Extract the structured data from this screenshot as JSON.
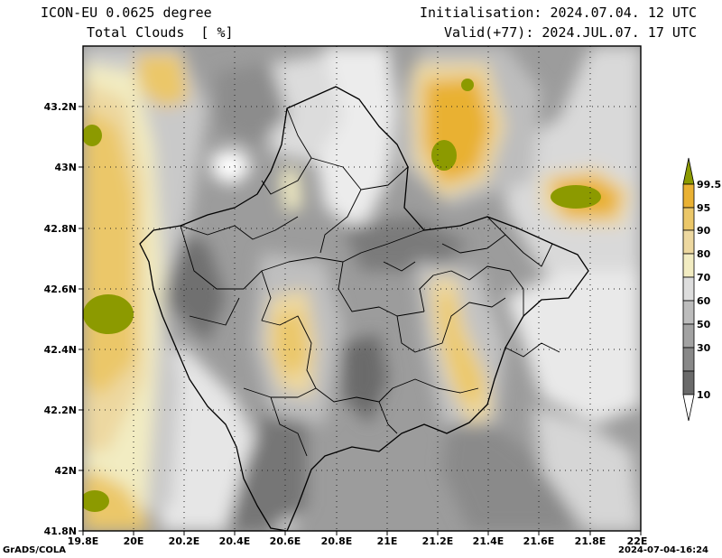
{
  "header": {
    "model": "ICON-EU 0.0625 degree",
    "field": "Total Clouds  [ %]",
    "initialisation": "Initialisation: 2024.07.04. 12 UTC",
    "valid": "Valid(+77): 2024.JUL.07. 17 UTC"
  },
  "axes": {
    "lon_labels": [
      "19.8E",
      "20E",
      "20.2E",
      "20.4E",
      "20.6E",
      "20.8E",
      "21E",
      "21.2E",
      "21.4E",
      "21.6E",
      "21.8E",
      "22E"
    ],
    "lat_labels": [
      "43.2N",
      "43N",
      "42.8N",
      "42.6N",
      "42.4N",
      "42.2N",
      "42N",
      "41.8N"
    ]
  },
  "legend": {
    "labels": [
      "99.5",
      "95",
      "90",
      "80",
      "70",
      "60",
      "50",
      "30",
      "10"
    ],
    "colors": [
      "#8c9a00",
      "#e9b133",
      "#ebc769",
      "#edd8a0",
      "#f2ecc2",
      "#dddddd",
      "#bcbcbc",
      "#a2a2a2",
      "#888888",
      "#6a6a6a",
      "#ffffff"
    ]
  },
  "footer": {
    "credit": "GrADS/COLA",
    "timestamp": "2024-07-04-16:24"
  }
}
